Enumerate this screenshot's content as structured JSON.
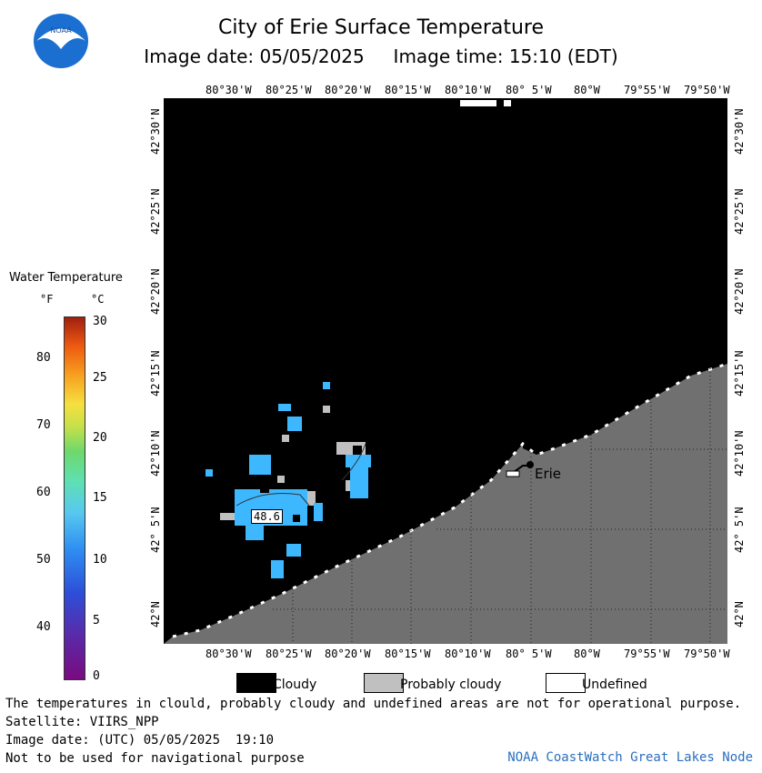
{
  "header": {
    "title": "City of Erie Surface Temperature",
    "subtitle": "Image date: 05/05/2025     Image time: 15:10 (EDT)",
    "logo_text": "NOAA"
  },
  "map": {
    "lon_labels": [
      "80°30'W",
      "80°25'W",
      "80°20'W",
      "80°15'W",
      "80°10'W",
      "80° 5'W",
      "80°W",
      "79°55'W",
      "79°50'W"
    ],
    "lat_labels": [
      "42°N",
      "42° 5'N",
      "42°10'N",
      "42°15'N",
      "42°20'N",
      "42°25'N",
      "42°30'N"
    ],
    "city_label": "Erie",
    "temp_label": "48.6",
    "colors": {
      "cloudy": "#000000",
      "probably_cloudy": "#c0c0c0",
      "land": "#707070",
      "water_temp": "#3db8ff"
    }
  },
  "legend": {
    "title": "Water Temperature",
    "unit_f": "°F",
    "unit_c": "°C",
    "f_ticks": [
      "80",
      "70",
      "60",
      "50",
      "40"
    ],
    "c_ticks": [
      "30",
      "25",
      "20",
      "15",
      "10",
      "5",
      "0"
    ],
    "box_labels": {
      "cloudy": "Cloudy",
      "probably_cloudy": "Probably cloudy",
      "undefined": "Undefined"
    }
  },
  "footer": {
    "line1": "The temperatures in clould, probably cloudy and undefined areas are not for operational purpose.",
    "line2": "Satellite: VIIRS_NPP",
    "line3": "Image date: (UTC) 05/05/2025  19:10",
    "line4": "Not to be used for navigational purpose",
    "credit": "NOAA CoastWatch Great Lakes Node"
  }
}
